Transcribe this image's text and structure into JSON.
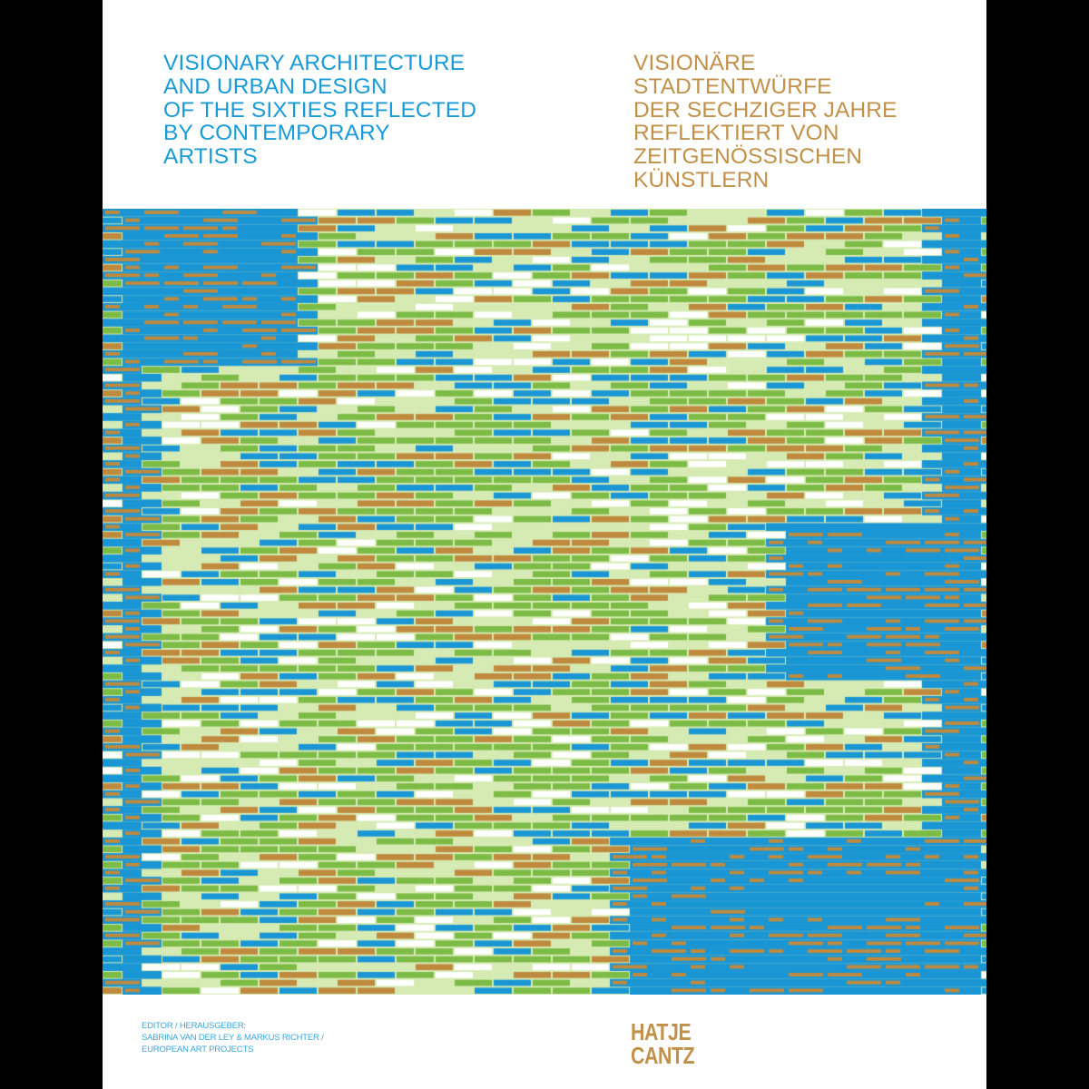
{
  "cover": {
    "title_en": "VISIONARY ARCHITECTURE\nAND URBAN DESIGN\nOF THE SIXTIES REFLECTED\nBY CONTEMPORARY\nARTISTS",
    "title_de": "VISIONÄRE\nSTADTENTWÜRFE\nDER SECHZIGER JAHRE\nREFLEKTIERT VON\nZEITGENÖSSISCHEN\nKÜNSTLERN",
    "credits": "EDITOR / HERAUSGEBER:\nSABRINA VAN DER LEY & MARKUS RICHTER /\nEUROPEAN ART PROJECTS",
    "publisher_logo": "HATJE\nCANTZ"
  },
  "colors": {
    "blue": "#1a96d4",
    "ochre": "#c08a3e",
    "green": "#7cbb45",
    "light_green": "#d6ebb4",
    "white": "#ffffff"
  }
}
